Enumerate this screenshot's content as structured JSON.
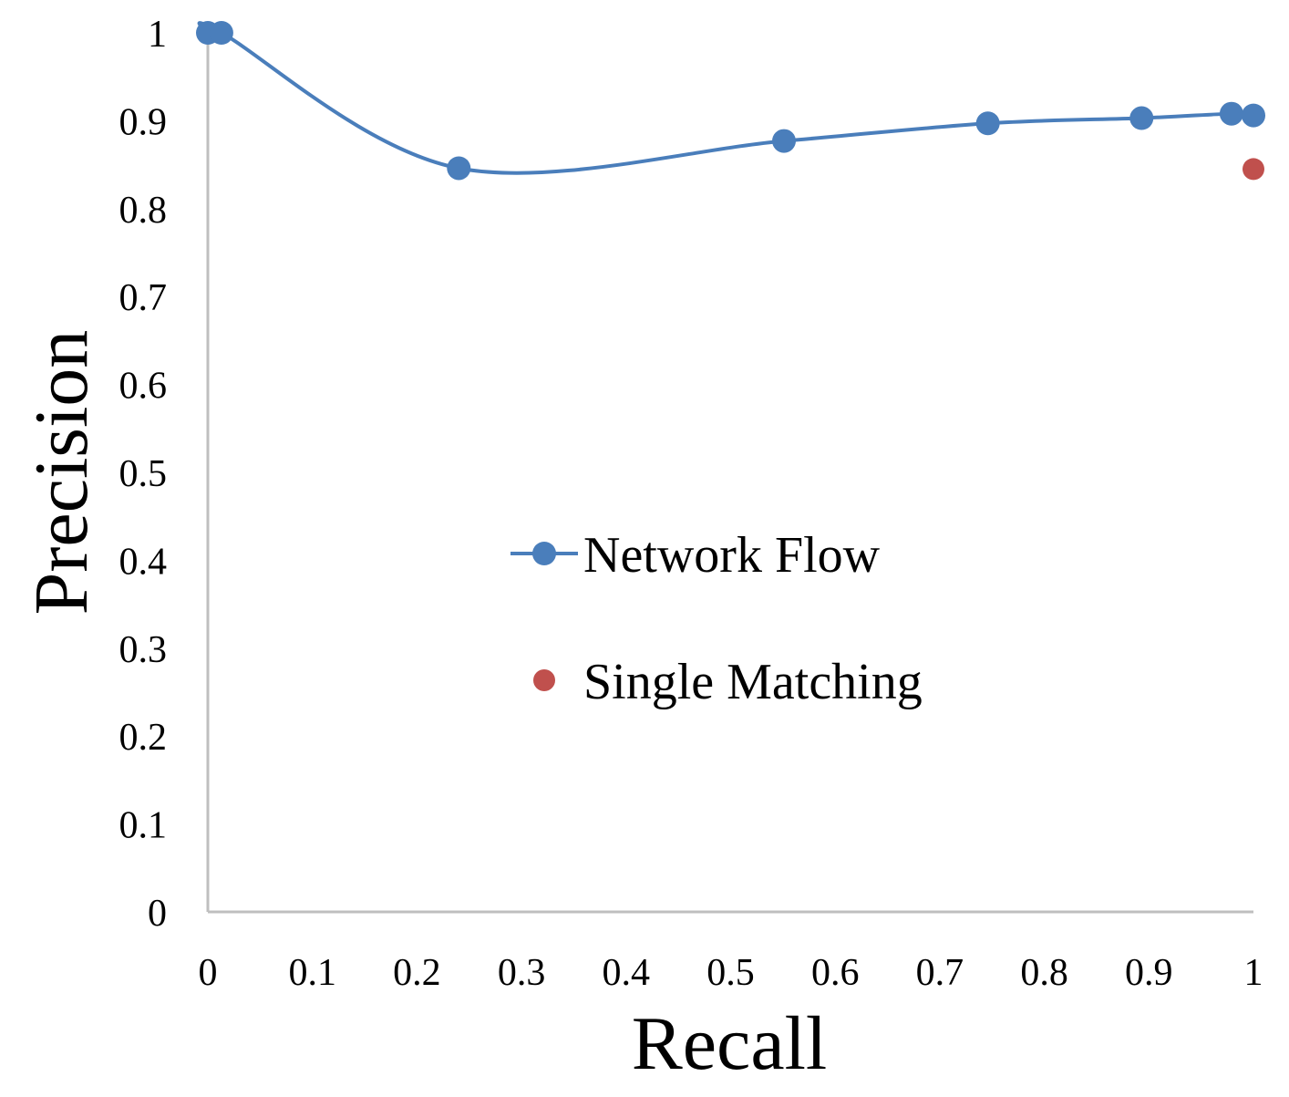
{
  "chart_data": {
    "type": "line",
    "xlabel": "Recall",
    "ylabel": "Precision",
    "xlim": [
      0,
      1
    ],
    "ylim": [
      0,
      1
    ],
    "x_ticks": [
      "0",
      "0.1",
      "0.2",
      "0.3",
      "0.4",
      "0.5",
      "0.6",
      "0.7",
      "0.8",
      "0.9",
      "1"
    ],
    "y_ticks": [
      "0",
      "0.1",
      "0.2",
      "0.3",
      "0.4",
      "0.5",
      "0.6",
      "0.7",
      "0.8",
      "0.9",
      "1"
    ],
    "grid": false,
    "legend": "center",
    "series": [
      {
        "name": "Network Flow",
        "style": "smooth-line-with-markers",
        "color": "#4a7ebb",
        "points": [
          [
            0.0,
            1.0
          ],
          [
            0.013,
            1.0
          ],
          [
            0.24,
            0.846
          ],
          [
            0.551,
            0.877
          ],
          [
            0.746,
            0.897
          ],
          [
            0.893,
            0.903
          ],
          [
            0.979,
            0.908
          ],
          [
            1.0,
            0.906
          ]
        ]
      },
      {
        "name": "Single Matching",
        "style": "markers-only",
        "color": "#c0504d",
        "points": [
          [
            1.0,
            0.845
          ]
        ]
      }
    ]
  }
}
